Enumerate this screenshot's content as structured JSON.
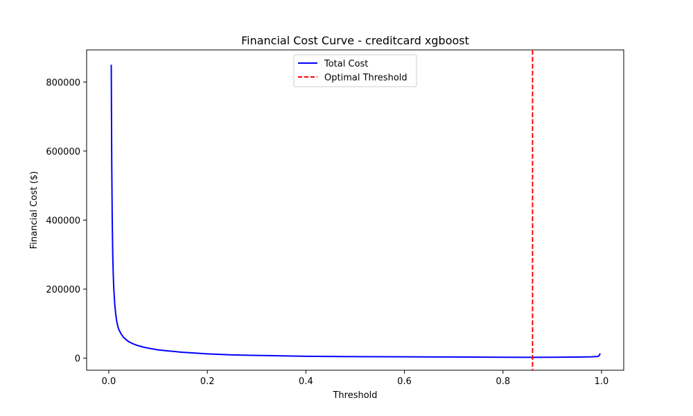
{
  "chart_data": {
    "type": "line",
    "title": "Financial Cost Curve - creditcard xgboost",
    "xlabel": "Threshold",
    "ylabel": "Financial Cost ($)",
    "xlim": [
      -0.045,
      1.045
    ],
    "ylim": [
      -35000,
      893000
    ],
    "xticks": [
      0.0,
      0.2,
      0.4,
      0.6,
      0.8,
      1.0
    ],
    "xtick_labels": [
      "0.0",
      "0.2",
      "0.4",
      "0.6",
      "0.8",
      "1.0"
    ],
    "yticks": [
      0,
      200000,
      400000,
      600000,
      800000
    ],
    "ytick_labels": [
      "0",
      "200000",
      "400000",
      "600000",
      "800000"
    ],
    "grid": false,
    "legend_position": "top-center",
    "series": [
      {
        "name": "Total Cost",
        "color": "#0000ff",
        "style": "solid",
        "x": [
          0.005,
          0.006,
          0.007,
          0.008,
          0.009,
          0.01,
          0.012,
          0.014,
          0.016,
          0.018,
          0.02,
          0.025,
          0.03,
          0.035,
          0.04,
          0.05,
          0.06,
          0.07,
          0.08,
          0.1,
          0.12,
          0.15,
          0.2,
          0.25,
          0.3,
          0.4,
          0.5,
          0.6,
          0.7,
          0.8,
          0.86,
          0.9,
          0.95,
          0.98,
          0.993,
          0.996,
          0.997
        ],
        "y": [
          850000,
          560000,
          400000,
          300000,
          245000,
          205000,
          158000,
          128000,
          108000,
          94000,
          84000,
          70000,
          60000,
          54000,
          48000,
          41000,
          36000,
          32000,
          29000,
          24000,
          21000,
          17000,
          12500,
          9500,
          8000,
          5500,
          4500,
          3800,
          3300,
          2700,
          2400,
          2700,
          3200,
          4000,
          5000,
          9000,
          14000
        ]
      },
      {
        "name": "Optimal Threshold",
        "color": "#ff0000",
        "style": "dashed",
        "type": "vline",
        "x": 0.86
      }
    ]
  }
}
